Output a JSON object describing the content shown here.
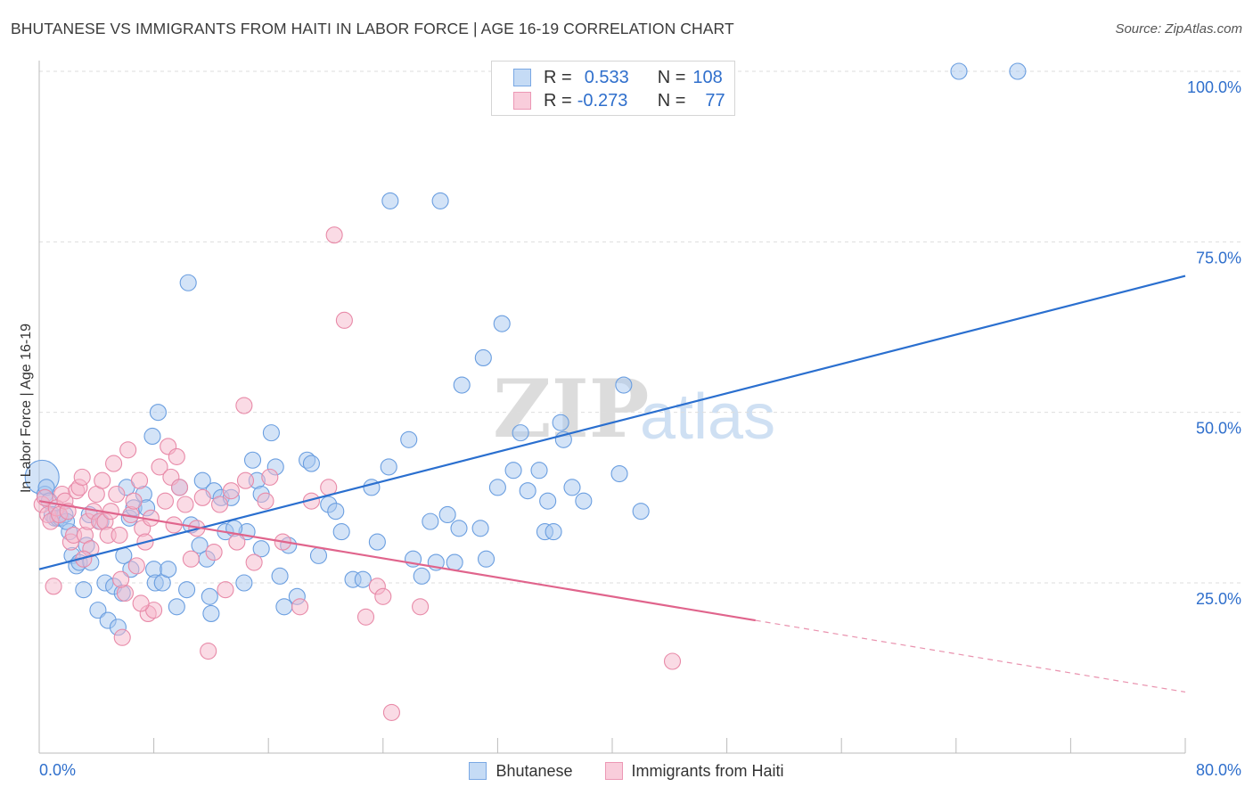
{
  "title": "BHUTANESE VS IMMIGRANTS FROM HAITI IN LABOR FORCE | AGE 16-19 CORRELATION CHART",
  "source": "Source: ZipAtlas.com",
  "legend_top": {
    "row1": {
      "r_label": "R =",
      "r_value": "0.533",
      "n_label": "N =",
      "n_value": "108"
    },
    "row2": {
      "r_label": "R =",
      "r_value": "-0.273",
      "n_label": "N =",
      "n_value": "77"
    }
  },
  "colors": {
    "blue_fill": "#a8c8f0",
    "blue_stroke": "#6a9ee0",
    "blue_line": "#2a6fcf",
    "pink_fill": "#f6b8cb",
    "pink_stroke": "#e88aa8",
    "pink_line": "#e0648c",
    "value_text": "#2f6fcc"
  },
  "chart_data": {
    "type": "scatter",
    "title": "BHUTANESE VS IMMIGRANTS FROM HAITI IN LABOR FORCE | AGE 16-19 CORRELATION CHART",
    "xlabel": "",
    "ylabel": "In Labor Force | Age 16-19",
    "xlim": [
      0,
      80
    ],
    "ylim": [
      0,
      105
    ],
    "x_tick_labels": [
      "0.0%",
      "80.0%"
    ],
    "y_tick_labels": [
      "25.0%",
      "50.0%",
      "75.0%",
      "100.0%"
    ],
    "y_ticks": [
      25,
      50,
      75,
      100
    ],
    "grid": true,
    "watermark": {
      "zip": "ZIP",
      "atlas": "atlas"
    },
    "series": [
      {
        "name": "Bhutanese",
        "r": 0.533,
        "n": 108,
        "trend": {
          "x": [
            0,
            80
          ],
          "y": [
            27,
            70
          ]
        },
        "points": [
          [
            0.2,
            40.5,
            "big"
          ],
          [
            0.4,
            38
          ],
          [
            0.5,
            39
          ],
          [
            0.7,
            37
          ],
          [
            0.9,
            35
          ],
          [
            1.1,
            34.5
          ],
          [
            1.3,
            34.5
          ],
          [
            1.5,
            34.5
          ],
          [
            2.1,
            32.5
          ],
          [
            2.3,
            29
          ],
          [
            2.6,
            27.5
          ],
          [
            2.8,
            28
          ],
          [
            3.1,
            24
          ],
          [
            3.3,
            30.5
          ],
          [
            3.5,
            35
          ],
          [
            3.6,
            28
          ],
          [
            4.1,
            21
          ],
          [
            4.3,
            34
          ],
          [
            4.6,
            25
          ],
          [
            4.8,
            19.5
          ],
          [
            5.2,
            24.5
          ],
          [
            5.5,
            18.5
          ],
          [
            5.8,
            23.5
          ],
          [
            6.1,
            39
          ],
          [
            6.3,
            34.5
          ],
          [
            6.4,
            27
          ],
          [
            6.6,
            36
          ],
          [
            7.3,
            38
          ],
          [
            7.5,
            36
          ],
          [
            8.0,
            27
          ],
          [
            8.3,
            50
          ],
          [
            7.9,
            46.5
          ],
          [
            10.4,
            69
          ],
          [
            8.1,
            25
          ],
          [
            8.6,
            25
          ],
          [
            9.6,
            21.5
          ],
          [
            9.8,
            39
          ],
          [
            10.3,
            24
          ],
          [
            10.6,
            33.5
          ],
          [
            11.2,
            30.5
          ],
          [
            11.4,
            40
          ],
          [
            11.7,
            28.5
          ],
          [
            12.2,
            38.5
          ],
          [
            12.7,
            37.5
          ],
          [
            13.0,
            32.5
          ],
          [
            13.4,
            37.5
          ],
          [
            14.3,
            25
          ],
          [
            14.5,
            32.5
          ],
          [
            14.9,
            43
          ],
          [
            15.2,
            40
          ],
          [
            15.5,
            38
          ],
          [
            16.2,
            47
          ],
          [
            16.5,
            42
          ],
          [
            17.4,
            30.5
          ],
          [
            18.0,
            23
          ],
          [
            18.7,
            43
          ],
          [
            19.0,
            42.5
          ],
          [
            20.2,
            36.5
          ],
          [
            20.7,
            35.5
          ],
          [
            21.1,
            32.5
          ],
          [
            21.9,
            25.5
          ],
          [
            23.2,
            39
          ],
          [
            23.6,
            31
          ],
          [
            24.4,
            42
          ],
          [
            24.5,
            81
          ],
          [
            25.8,
            46
          ],
          [
            26.1,
            28.5
          ],
          [
            28.0,
            81
          ],
          [
            27.3,
            34
          ],
          [
            27.7,
            28
          ],
          [
            28.5,
            35
          ],
          [
            29.0,
            28
          ],
          [
            29.3,
            33
          ],
          [
            29.5,
            54
          ],
          [
            30.8,
            33
          ],
          [
            31.0,
            58
          ],
          [
            31.2,
            28.5
          ],
          [
            32.0,
            39
          ],
          [
            32.3,
            63
          ],
          [
            33.1,
            41.5
          ],
          [
            33.6,
            47
          ],
          [
            34.1,
            38.5
          ],
          [
            34.9,
            41.5
          ],
          [
            35.3,
            32.5
          ],
          [
            35.5,
            37
          ],
          [
            35.9,
            32.5
          ],
          [
            36.4,
            48.5
          ],
          [
            36.6,
            46
          ],
          [
            37.2,
            39
          ],
          [
            38.0,
            37
          ],
          [
            40.5,
            41
          ],
          [
            40.8,
            54
          ],
          [
            42.0,
            35.5
          ],
          [
            64.2,
            100
          ],
          [
            68.3,
            100
          ],
          [
            1.8,
            35
          ],
          [
            1.9,
            34
          ],
          [
            5.9,
            29
          ],
          [
            9.0,
            27
          ],
          [
            13.6,
            33
          ],
          [
            17.1,
            21.5
          ],
          [
            22.6,
            25.5
          ],
          [
            12.0,
            20.5
          ],
          [
            15.5,
            30
          ],
          [
            11.9,
            23
          ],
          [
            16.8,
            26
          ],
          [
            19.5,
            29
          ],
          [
            26.7,
            26
          ]
        ]
      },
      {
        "name": "Immigrants from Haiti",
        "r": -0.273,
        "n": 77,
        "trend": {
          "x": [
            0,
            50
          ],
          "y": [
            37,
            19.5
          ]
        },
        "trend_dashed": {
          "x": [
            50,
            80
          ],
          "y": [
            19.5,
            9
          ]
        },
        "points": [
          [
            0.2,
            36.5
          ],
          [
            0.4,
            37.5
          ],
          [
            0.6,
            35
          ],
          [
            0.8,
            34
          ],
          [
            1.0,
            24.5
          ],
          [
            1.2,
            36
          ],
          [
            1.4,
            35
          ],
          [
            1.6,
            38
          ],
          [
            1.8,
            37
          ],
          [
            2.0,
            35.5
          ],
          [
            2.2,
            31
          ],
          [
            2.4,
            32
          ],
          [
            2.6,
            38.5
          ],
          [
            2.8,
            39
          ],
          [
            3.0,
            40.5
          ],
          [
            3.2,
            32
          ],
          [
            3.4,
            34
          ],
          [
            3.6,
            30
          ],
          [
            3.8,
            35.5
          ],
          [
            4.0,
            38
          ],
          [
            4.2,
            34
          ],
          [
            4.4,
            40
          ],
          [
            4.6,
            34
          ],
          [
            4.8,
            32
          ],
          [
            5.0,
            35.5
          ],
          [
            5.2,
            42.5
          ],
          [
            5.4,
            38
          ],
          [
            5.6,
            32
          ],
          [
            5.8,
            17
          ],
          [
            6.0,
            23.5
          ],
          [
            6.2,
            44.5
          ],
          [
            6.4,
            35
          ],
          [
            6.6,
            37
          ],
          [
            6.8,
            27.5
          ],
          [
            7.0,
            40
          ],
          [
            7.2,
            33
          ],
          [
            7.4,
            31
          ],
          [
            7.6,
            20.5
          ],
          [
            7.8,
            34.5
          ],
          [
            8.0,
            21
          ],
          [
            8.4,
            42
          ],
          [
            8.8,
            37
          ],
          [
            9.0,
            45
          ],
          [
            9.2,
            40.5
          ],
          [
            9.4,
            33.5
          ],
          [
            9.8,
            39
          ],
          [
            10.2,
            36.5
          ],
          [
            10.6,
            28.5
          ],
          [
            11.0,
            33
          ],
          [
            11.4,
            37.5
          ],
          [
            11.8,
            15
          ],
          [
            12.2,
            29.5
          ],
          [
            12.6,
            36.5
          ],
          [
            13.0,
            24
          ],
          [
            13.4,
            38.5
          ],
          [
            13.8,
            31
          ],
          [
            14.3,
            51
          ],
          [
            15.0,
            28
          ],
          [
            15.8,
            37
          ],
          [
            17.0,
            31
          ],
          [
            18.2,
            21.5
          ],
          [
            19.0,
            37
          ],
          [
            20.2,
            39
          ],
          [
            20.6,
            76
          ],
          [
            21.3,
            63.5
          ],
          [
            22.8,
            20
          ],
          [
            23.6,
            24.5
          ],
          [
            24.0,
            23
          ],
          [
            24.6,
            6
          ],
          [
            26.6,
            21.5
          ],
          [
            44.2,
            13.5
          ],
          [
            3.1,
            28.5
          ],
          [
            5.7,
            25.5
          ],
          [
            7.1,
            22
          ],
          [
            9.6,
            43.5
          ],
          [
            14.4,
            40
          ],
          [
            16.1,
            40.5
          ]
        ]
      }
    ]
  },
  "bottom_legend": [
    {
      "label": "Bhutanese"
    },
    {
      "label": "Immigrants from Haiti"
    }
  ]
}
